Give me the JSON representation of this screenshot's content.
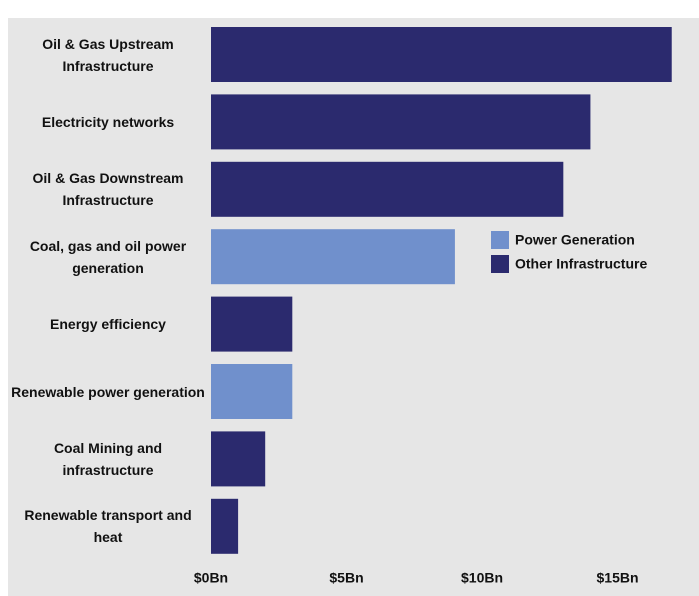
{
  "chart_data": {
    "type": "barh",
    "categories": [
      "Oil & Gas Upstream Infrastructure",
      "Electricity networks",
      "Oil & Gas Downstream Infrastructure",
      "Coal, gas and oil power generation",
      "Energy efficiency",
      "Renewable power generation",
      "Coal Mining and infrastructure",
      "Renewable transport and heat"
    ],
    "values": [
      17,
      14,
      13,
      9,
      3,
      3,
      2,
      1
    ],
    "colors": [
      "#2b2a6e",
      "#2b2a6e",
      "#2b2a6e",
      "#7090cc",
      "#2b2a6e",
      "#7090cc",
      "#2b2a6e",
      "#2b2a6e"
    ],
    "legend": [
      {
        "name": "Power Generation",
        "color": "#7090cc"
      },
      {
        "name": "Other Infrastructure",
        "color": "#2b2a6e"
      }
    ],
    "xlim": [
      0,
      17.7
    ],
    "xticks": [
      {
        "value": 0,
        "label": "$0Bn"
      },
      {
        "value": 5,
        "label": "$5Bn"
      },
      {
        "value": 10,
        "label": "$10Bn"
      },
      {
        "value": 15,
        "label": "$15Bn"
      }
    ],
    "grid": false
  }
}
